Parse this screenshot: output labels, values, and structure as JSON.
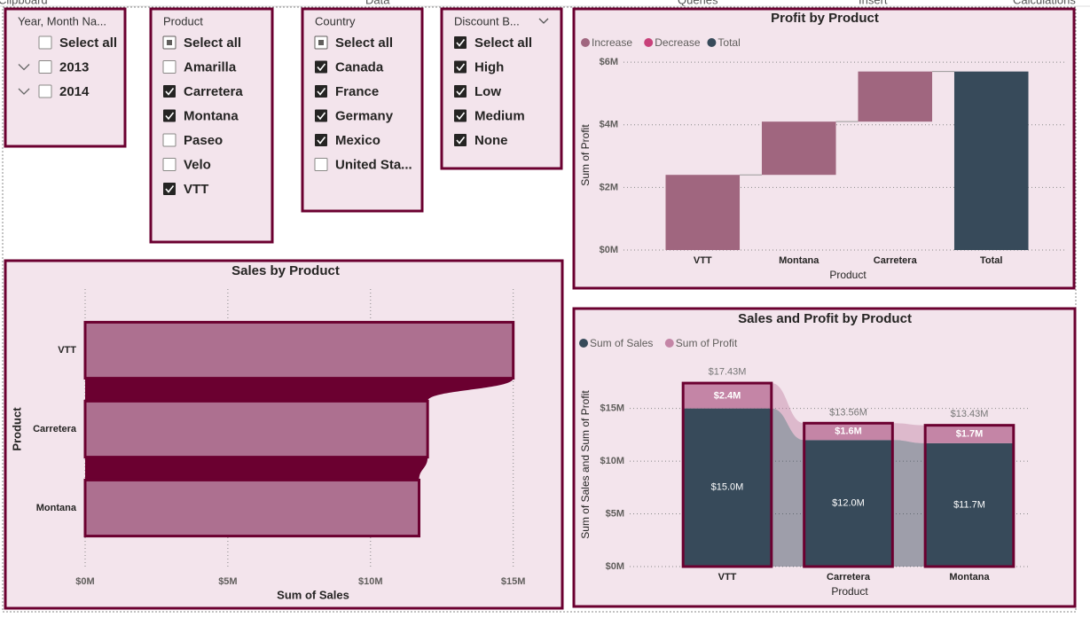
{
  "ribbon": {
    "tabs": [
      "Clipboard",
      "Data",
      "Queries",
      "Insert",
      "Calculations"
    ]
  },
  "slicers": [
    {
      "title": "Year, Month Na...",
      "items": [
        {
          "label": "Select all",
          "state": "unchecked"
        },
        {
          "label": "2013",
          "state": "unchecked",
          "expandable": true
        },
        {
          "label": "2014",
          "state": "unchecked",
          "expandable": true
        }
      ]
    },
    {
      "title": "Product",
      "items": [
        {
          "label": "Select all",
          "state": "partial"
        },
        {
          "label": "Amarilla",
          "state": "unchecked"
        },
        {
          "label": "Carretera",
          "state": "checked"
        },
        {
          "label": "Montana",
          "state": "checked"
        },
        {
          "label": "Paseo",
          "state": "unchecked"
        },
        {
          "label": "Velo",
          "state": "unchecked"
        },
        {
          "label": "VTT",
          "state": "checked"
        }
      ]
    },
    {
      "title": "Country",
      "items": [
        {
          "label": "Select all",
          "state": "partial"
        },
        {
          "label": "Canada",
          "state": "checked"
        },
        {
          "label": "France",
          "state": "checked"
        },
        {
          "label": "Germany",
          "state": "checked"
        },
        {
          "label": "Mexico",
          "state": "checked"
        },
        {
          "label": "United Sta...",
          "state": "unchecked"
        }
      ]
    },
    {
      "title": "Discount B...",
      "dropdown": true,
      "items": [
        {
          "label": "Select all",
          "state": "checked"
        },
        {
          "label": "High",
          "state": "checked"
        },
        {
          "label": "Low",
          "state": "checked"
        },
        {
          "label": "Medium",
          "state": "checked"
        },
        {
          "label": "None",
          "state": "checked"
        }
      ]
    }
  ],
  "chart_data": [
    {
      "type": "waterfall",
      "title": "Profit by Product",
      "legend": [
        {
          "name": "Increase",
          "color": "#a0667f"
        },
        {
          "name": "Decrease",
          "color": "#c8417a"
        },
        {
          "name": "Total",
          "color": "#374a5a"
        }
      ],
      "categories": [
        "VTT",
        "Montana",
        "Carretera",
        "Total"
      ],
      "values": [
        2.4,
        1.7,
        1.6,
        5.7
      ],
      "ylim": [
        0,
        6.2
      ],
      "yticks": [
        {
          "value": 0,
          "label": "$0M"
        },
        {
          "value": 2,
          "label": "$2M"
        },
        {
          "value": 4,
          "label": "$4M"
        },
        {
          "value": 6,
          "label": "$6M"
        }
      ],
      "x_label": "Product",
      "y_label": "Sum of Profit",
      "grid": true
    },
    {
      "type": "ribbon",
      "orientation": "horizontal",
      "title": "Sales by Product",
      "categories": [
        "VTT",
        "Carretera",
        "Montana"
      ],
      "values": [
        15.0,
        12.0,
        11.7
      ],
      "color": "#ad7090",
      "border_color": "#6b0030",
      "xlim": [
        0,
        15.6
      ],
      "xticks": [
        {
          "value": 0,
          "label": "$0M"
        },
        {
          "value": 5,
          "label": "$5M"
        },
        {
          "value": 10,
          "label": "$10M"
        },
        {
          "value": 15,
          "label": "$15M"
        }
      ],
      "x_label": "Sum of Sales",
      "y_label": "Product",
      "grid": true
    },
    {
      "type": "ribbon",
      "orientation": "vertical",
      "title": "Sales and Profit by Product",
      "categories": [
        "VTT",
        "Carretera",
        "Montana"
      ],
      "series": [
        {
          "name": "Sum of Sales",
          "color": "#374a5a",
          "values": [
            15.0,
            12.0,
            11.7
          ],
          "value_labels": [
            "$15.0M",
            "$12.0M",
            "$11.7M"
          ]
        },
        {
          "name": "Sum of Profit",
          "color": "#c485a6",
          "values": [
            2.4,
            1.6,
            1.7
          ],
          "value_labels": [
            "$2.4M",
            "$1.6M",
            "$1.7M"
          ]
        }
      ],
      "totals": [
        17.43,
        13.56,
        13.43
      ],
      "total_labels": [
        "$17.43M",
        "$13.56M",
        "$13.43M"
      ],
      "border_color": "#6b0030",
      "ylim": [
        0,
        18.5
      ],
      "yticks": [
        {
          "value": 0,
          "label": "$0M"
        },
        {
          "value": 5,
          "label": "$5M"
        },
        {
          "value": 10,
          "label": "$10M"
        },
        {
          "value": 15,
          "label": "$15M"
        }
      ],
      "x_label": "Product",
      "y_label": "Sum of Sales and Sum of Profit",
      "grid": true
    }
  ]
}
